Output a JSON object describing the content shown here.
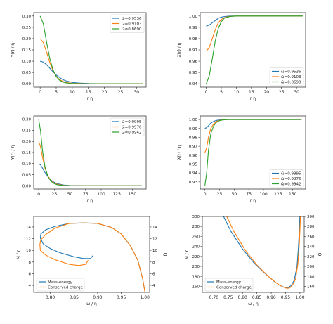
{
  "chart_data": [
    {
      "type": "line",
      "xlabel": "r η",
      "ylabel": "Y(r) / η",
      "xlim": [
        -2,
        33
      ],
      "ylim": [
        -0.015,
        0.315
      ],
      "xticks": [
        0,
        5,
        10,
        15,
        20,
        25,
        30
      ],
      "yticks": [
        0.0,
        0.05,
        0.1,
        0.15,
        0.2,
        0.25,
        0.3
      ],
      "ytick_decimals": 2,
      "legend_position": "top-right",
      "series": [
        {
          "name": "ω̄=0.9536",
          "color": "#1f77b4",
          "x": [
            0,
            1,
            2,
            3,
            4,
            5,
            6,
            7,
            8,
            10,
            12,
            15,
            20,
            25,
            32
          ],
          "y": [
            0.1,
            0.096,
            0.085,
            0.069,
            0.053,
            0.039,
            0.028,
            0.019,
            0.013,
            0.006,
            0.003,
            0.001,
            0,
            0,
            0
          ]
        },
        {
          "name": "ω̄=0.9103",
          "color": "#ff7f0e",
          "x": [
            0,
            1,
            2,
            3,
            4,
            5,
            6,
            7,
            8,
            10,
            12,
            15,
            20,
            25,
            32
          ],
          "y": [
            0.2,
            0.182,
            0.14,
            0.094,
            0.058,
            0.034,
            0.019,
            0.011,
            0.006,
            0.002,
            0.001,
            0,
            0,
            0,
            0
          ]
        },
        {
          "name": "ω̄=0.8690",
          "color": "#2ca02c",
          "x": [
            0,
            1,
            2,
            3,
            4,
            5,
            6,
            7,
            8,
            10,
            12,
            15,
            20,
            25,
            32
          ],
          "y": [
            0.3,
            0.265,
            0.185,
            0.112,
            0.062,
            0.032,
            0.016,
            0.008,
            0.004,
            0.001,
            0,
            0,
            0,
            0,
            0
          ]
        }
      ]
    },
    {
      "type": "line",
      "xlabel": "r η",
      "ylabel": "X(r) / η",
      "xlim": [
        -2,
        33
      ],
      "ylim": [
        0.937,
        1.003
      ],
      "xticks": [
        0,
        5,
        10,
        15,
        20,
        25,
        30
      ],
      "yticks": [
        0.94,
        0.95,
        0.96,
        0.97,
        0.98,
        0.99,
        1.0
      ],
      "ytick_decimals": 2,
      "legend_position": "bottom-right",
      "series": [
        {
          "name": "ω̄=0.9536",
          "color": "#1f77b4",
          "x": [
            0,
            1,
            2,
            3,
            4,
            5,
            6,
            7,
            8,
            10,
            12,
            15,
            20,
            32
          ],
          "y": [
            0.991,
            0.992,
            0.994,
            0.996,
            0.998,
            0.999,
            0.9995,
            0.9998,
            1.0,
            1.0,
            1.0,
            1.0,
            1.0,
            1.0
          ]
        },
        {
          "name": "ω̄=0.9103",
          "color": "#ff7f0e",
          "x": [
            0,
            1,
            2,
            3,
            4,
            5,
            6,
            7,
            8,
            10,
            12,
            15,
            20,
            32
          ],
          "y": [
            0.969,
            0.972,
            0.98,
            0.988,
            0.994,
            0.997,
            0.9985,
            0.9993,
            0.9997,
            1.0,
            1.0,
            1.0,
            1.0,
            1.0
          ]
        },
        {
          "name": "ω̄=0.8690",
          "color": "#2ca02c",
          "x": [
            0,
            1,
            2,
            3,
            4,
            5,
            6,
            7,
            8,
            10,
            12,
            15,
            20,
            32
          ],
          "y": [
            0.94,
            0.947,
            0.962,
            0.978,
            0.989,
            0.995,
            0.998,
            0.999,
            0.9996,
            1.0,
            1.0,
            1.0,
            1.0,
            1.0
          ]
        }
      ]
    },
    {
      "type": "line",
      "xlabel": "r η",
      "ylabel": "Y(r) / η",
      "xlim": [
        -8,
        172
      ],
      "ylim": [
        -0.015,
        0.315
      ],
      "xticks": [
        0,
        25,
        50,
        75,
        100,
        125,
        150
      ],
      "yticks": [
        0.0,
        0.05,
        0.1,
        0.15,
        0.2,
        0.25,
        0.3
      ],
      "ytick_decimals": 2,
      "legend_position": "top-right",
      "series": [
        {
          "name": "ω̄=0.9995",
          "color": "#1f77b4",
          "x": [
            0,
            3,
            6,
            10,
            15,
            20,
            25,
            30,
            40,
            50,
            75,
            100,
            165
          ],
          "y": [
            0.1,
            0.094,
            0.08,
            0.06,
            0.04,
            0.025,
            0.015,
            0.009,
            0.003,
            0.001,
            0,
            0,
            0
          ]
        },
        {
          "name": "ω̄=0.9976",
          "color": "#ff7f0e",
          "x": [
            0,
            3,
            6,
            10,
            15,
            20,
            25,
            30,
            40,
            50,
            75,
            100,
            165
          ],
          "y": [
            0.2,
            0.175,
            0.13,
            0.08,
            0.042,
            0.022,
            0.011,
            0.006,
            0.002,
            0,
            0,
            0,
            0
          ]
        },
        {
          "name": "ω̄=0.9942",
          "color": "#2ca02c",
          "x": [
            0,
            3,
            6,
            10,
            15,
            20,
            25,
            30,
            40,
            50,
            75,
            100,
            165
          ],
          "y": [
            0.3,
            0.245,
            0.16,
            0.085,
            0.04,
            0.019,
            0.009,
            0.004,
            0.001,
            0,
            0,
            0,
            0
          ]
        }
      ]
    },
    {
      "type": "line",
      "xlabel": "r η",
      "ylabel": "X(r) / η",
      "xlim": [
        -8,
        172
      ],
      "ylim": [
        0.922,
        1.004
      ],
      "xticks": [
        0,
        25,
        50,
        75,
        100,
        125,
        150
      ],
      "yticks": [
        0.93,
        0.94,
        0.95,
        0.96,
        0.97,
        0.98,
        0.99,
        1.0
      ],
      "ytick_decimals": 2,
      "legend_position": "bottom-right",
      "series": [
        {
          "name": "ω̄=0.9995",
          "color": "#1f77b4",
          "x": [
            0,
            3,
            6,
            10,
            15,
            20,
            25,
            30,
            40,
            50,
            165
          ],
          "y": [
            0.99,
            0.991,
            0.993,
            0.996,
            0.998,
            0.999,
            0.9995,
            0.9998,
            1.0,
            1.0,
            1.0
          ]
        },
        {
          "name": "ω̄=0.9976",
          "color": "#ff7f0e",
          "x": [
            0,
            3,
            6,
            10,
            15,
            20,
            25,
            30,
            40,
            50,
            165
          ],
          "y": [
            0.963,
            0.968,
            0.98,
            0.99,
            0.995,
            0.998,
            0.999,
            0.9996,
            1.0,
            1.0,
            1.0
          ]
        },
        {
          "name": "ω̄=0.9942",
          "color": "#2ca02c",
          "x": [
            0,
            3,
            6,
            10,
            15,
            20,
            25,
            30,
            40,
            50,
            165
          ],
          "y": [
            0.926,
            0.94,
            0.965,
            0.984,
            0.993,
            0.997,
            0.9988,
            0.9995,
            1.0,
            1.0,
            1.0
          ]
        }
      ]
    },
    {
      "type": "line",
      "xlabel": "ω / η",
      "ylabel": "M / η",
      "ylabel_right": "Q",
      "xlim": [
        0.765,
        1.01
      ],
      "ylim": [
        2.8,
        15.8
      ],
      "ylim_right": [
        2.8,
        15.8
      ],
      "xticks": [
        0.8,
        0.85,
        0.9,
        0.95,
        1.0
      ],
      "xtick_decimals": 2,
      "yticks": [
        4,
        6,
        8,
        10,
        12,
        14
      ],
      "yticks_right": [
        4,
        6,
        8,
        10,
        12,
        14
      ],
      "ytick_decimals": 0,
      "legend_position": "bottom-left",
      "series": [
        {
          "name": "Mass-energy",
          "color": "#1f77b4",
          "x": [
            0.89,
            0.885,
            0.87,
            0.85,
            0.82,
            0.8,
            0.785,
            0.779,
            0.78,
            0.79,
            0.81,
            0.84,
            0.87,
            0.9,
            0.93,
            0.95,
            0.97,
            0.985,
            0.995,
            1.0
          ],
          "y": [
            9.1,
            8.6,
            8.6,
            8.9,
            9.6,
            10.3,
            11.1,
            12.1,
            12.8,
            13.5,
            14.1,
            14.6,
            14.7,
            14.6,
            13.9,
            12.8,
            10.7,
            8.3,
            5.2,
            2.9
          ]
        },
        {
          "name": "Conserved charge",
          "color": "#ff7f0e",
          "x": [
            0.88,
            0.875,
            0.86,
            0.84,
            0.81,
            0.79,
            0.779,
            0.778,
            0.78,
            0.79,
            0.81,
            0.84,
            0.87,
            0.9,
            0.93,
            0.95,
            0.97,
            0.985,
            0.995,
            1.0
          ],
          "y": [
            8.3,
            7.6,
            7.4,
            7.6,
            8.4,
            9.2,
            10.0,
            11.0,
            11.8,
            12.7,
            13.8,
            14.6,
            14.7,
            14.6,
            13.9,
            12.8,
            10.7,
            8.3,
            5.2,
            2.9
          ]
        }
      ]
    },
    {
      "type": "line",
      "xlabel": "ω / η",
      "ylabel": "M / η",
      "ylabel_right": "Q",
      "xlim": [
        0.66,
        1.015
      ],
      "ylim": [
        148,
        300
      ],
      "ylim_right": [
        148,
        300
      ],
      "xticks": [
        0.7,
        0.75,
        0.8,
        0.85,
        0.9,
        0.95,
        1.0
      ],
      "xtick_decimals": 2,
      "yticks": [
        160,
        180,
        200,
        220,
        240,
        260,
        280,
        300
      ],
      "yticks_right": [
        160,
        180,
        200,
        220,
        240,
        260,
        280,
        300
      ],
      "ytick_decimals": 0,
      "legend_position": "bottom-left",
      "series": [
        {
          "name": "Mass-energy",
          "color": "#1f77b4",
          "x": [
            0.734,
            0.76,
            0.8,
            0.84,
            0.88,
            0.91,
            0.93,
            0.95,
            0.96,
            0.97,
            0.98,
            0.99,
            0.995,
            1.0
          ],
          "y": [
            300,
            270,
            235,
            207,
            185,
            170,
            162,
            157,
            158,
            162,
            172,
            200,
            240,
            300
          ]
        },
        {
          "name": "Conserved charge",
          "color": "#ff7f0e",
          "x": [
            0.745,
            0.77,
            0.81,
            0.85,
            0.89,
            0.92,
            0.94,
            0.955,
            0.965,
            0.975,
            0.985,
            0.993,
            0.998,
            1.002
          ],
          "y": [
            300,
            270,
            232,
            203,
            180,
            166,
            159,
            156,
            157,
            163,
            175,
            205,
            245,
            300
          ]
        }
      ]
    }
  ]
}
